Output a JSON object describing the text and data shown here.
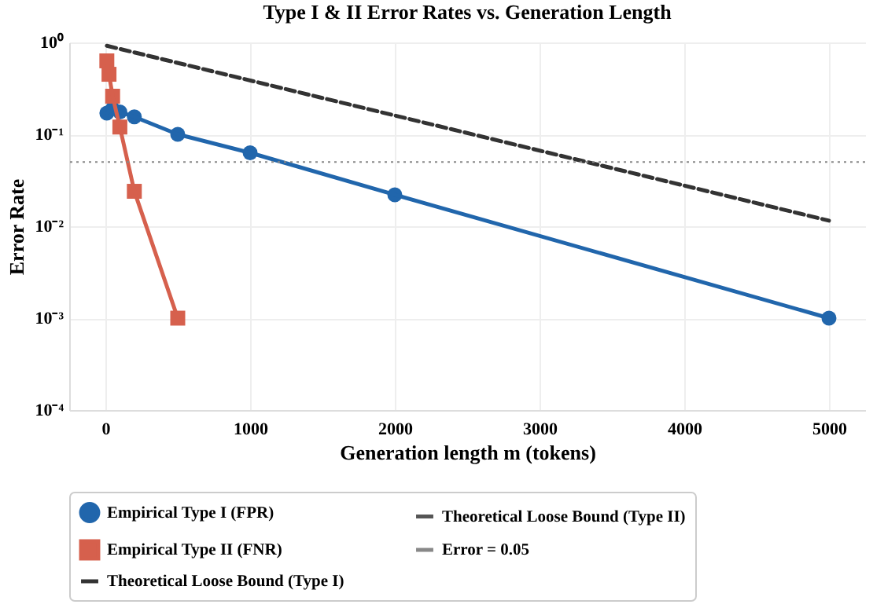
{
  "chart_data": {
    "type": "line",
    "title": "Type I & II Error Rates vs. Generation Length",
    "xlabel": "Generation length m (tokens)",
    "ylabel": "Error Rate",
    "series": [
      {
        "name": "Empirical Type I (FPR)",
        "color": "#2166ac",
        "marker": "circle",
        "line_style": "solid",
        "x": [
          10,
          50,
          100,
          200,
          500,
          1000,
          2000,
          5000
        ],
        "values": [
          0.17,
          0.19,
          0.175,
          0.155,
          0.1,
          0.063,
          0.022,
          0.001
        ]
      },
      {
        "name": "Empirical Type II (FNR)",
        "color": "#d6604d",
        "marker": "square",
        "line_style": "solid",
        "x": [
          10,
          25,
          50,
          100,
          200,
          500
        ],
        "values": [
          0.63,
          0.45,
          0.26,
          0.12,
          0.024,
          0.001
        ]
      },
      {
        "name": "Theoretical Loose Bound (Type I)",
        "color": "#333333",
        "marker": "none",
        "line_style": "dashed",
        "x": [
          10,
          5000
        ],
        "values": [
          0.92,
          0.0115
        ]
      },
      {
        "name": "Theoretical Loose Bound (Type II)",
        "color": "#555555",
        "marker": "none",
        "line_style": "dotted"
      }
    ],
    "ref_lines": [
      {
        "axis": "y",
        "value": 0.05,
        "label": "Error = 0.05",
        "color": "#888888",
        "line_style": "dotted"
      }
    ],
    "log": "y",
    "xlim": [
      -250,
      5250
    ],
    "ylim": [
      0.0001,
      1
    ],
    "xticks": [
      0,
      1000,
      2000,
      3000,
      4000,
      5000
    ],
    "yticks": [
      {
        "value": 0.0001,
        "label": "10⁻⁴"
      },
      {
        "value": 0.001,
        "label": "10⁻³"
      },
      {
        "value": 0.01,
        "label": "10⁻²"
      },
      {
        "value": 0.1,
        "label": "10⁻¹"
      },
      {
        "value": 1,
        "label": "10⁰"
      }
    ],
    "grid": true,
    "legend": "bottom"
  }
}
